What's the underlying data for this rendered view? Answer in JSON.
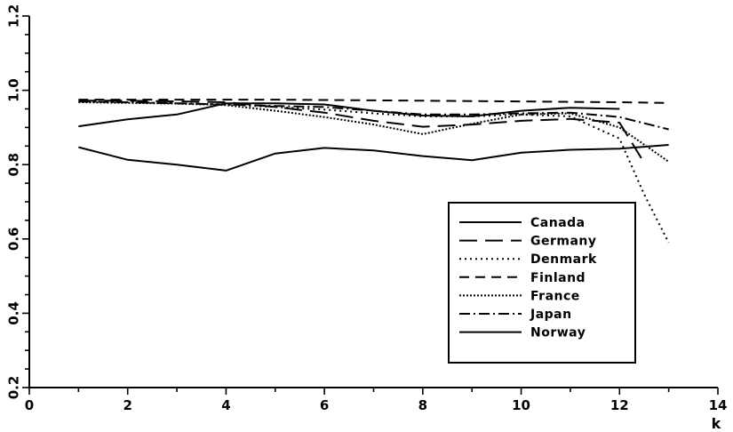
{
  "chart_data": {
    "type": "line",
    "title": "",
    "xlabel": "k",
    "ylabel": "",
    "xlim": [
      0,
      14
    ],
    "ylim": [
      0.2,
      1.2
    ],
    "xticks": [
      0,
      2,
      4,
      6,
      8,
      10,
      12,
      14
    ],
    "yticks": [
      0.2,
      0.4,
      0.6,
      0.8,
      1.0,
      1.2
    ],
    "xtick_labels": [
      "0",
      "2",
      "4",
      "6",
      "8",
      "10",
      "12",
      "14"
    ],
    "ytick_labels": [
      "0.2",
      "0.4",
      "0.6",
      "0.8",
      "1.0",
      "1.2"
    ],
    "grid": false,
    "legend_position": "lower-right",
    "series": [
      {
        "name": "Canada",
        "dash": "solid",
        "x": [
          1,
          2,
          3,
          4,
          5,
          6,
          7,
          8,
          9,
          10,
          11,
          12,
          13
        ],
        "y": [
          0.847,
          0.813,
          0.8,
          0.784,
          0.83,
          0.845,
          0.838,
          0.823,
          0.812,
          0.832,
          0.84,
          0.843,
          0.853
        ]
      },
      {
        "name": "Germany",
        "dash": "longdash",
        "x": [
          1,
          2,
          3,
          4,
          5,
          6,
          7,
          8,
          9,
          10,
          11,
          12,
          12.5
        ],
        "y": [
          0.972,
          0.972,
          0.97,
          0.968,
          0.955,
          0.94,
          0.918,
          0.902,
          0.908,
          0.918,
          0.923,
          0.913,
          0.805
        ]
      },
      {
        "name": "Denmark",
        "dash": "dotted",
        "x": [
          1,
          2,
          3,
          4,
          5,
          6,
          7,
          8,
          9,
          10,
          11,
          12,
          12.5,
          13
        ],
        "y": [
          0.97,
          0.968,
          0.965,
          0.962,
          0.955,
          0.948,
          0.938,
          0.93,
          0.93,
          0.935,
          0.93,
          0.87,
          0.72,
          0.59
        ]
      },
      {
        "name": "Finland",
        "dash": "shortdash",
        "x": [
          1,
          2,
          3,
          4,
          5,
          6,
          7,
          8,
          9,
          10,
          11,
          12,
          13
        ],
        "y": [
          0.975,
          0.975,
          0.975,
          0.975,
          0.975,
          0.974,
          0.973,
          0.972,
          0.971,
          0.97,
          0.969,
          0.968,
          0.966
        ]
      },
      {
        "name": "France",
        "dash": "densedot",
        "x": [
          1,
          2,
          3,
          4,
          5,
          6,
          7,
          8,
          9,
          10,
          11,
          12,
          13
        ],
        "y": [
          0.968,
          0.966,
          0.964,
          0.96,
          0.945,
          0.928,
          0.908,
          0.882,
          0.91,
          0.935,
          0.938,
          0.9,
          0.808
        ]
      },
      {
        "name": "Japan",
        "dash": "dashdot",
        "x": [
          1,
          2,
          3,
          4,
          5,
          6,
          7,
          8,
          9,
          10,
          11,
          12,
          13
        ],
        "y": [
          0.97,
          0.968,
          0.965,
          0.962,
          0.958,
          0.955,
          0.945,
          0.935,
          0.935,
          0.938,
          0.94,
          0.928,
          0.895
        ]
      },
      {
        "name": "Norway",
        "dash": "solid",
        "x": [
          1,
          2,
          3,
          4,
          5,
          6,
          7,
          8,
          9,
          10,
          11,
          12
        ],
        "y": [
          0.903,
          0.922,
          0.935,
          0.965,
          0.965,
          0.962,
          0.945,
          0.932,
          0.93,
          0.945,
          0.953,
          0.95
        ]
      }
    ]
  }
}
